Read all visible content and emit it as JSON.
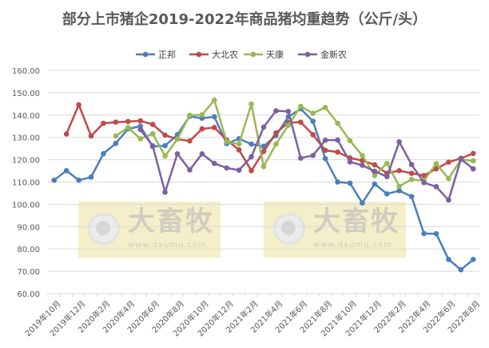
{
  "chart_data": {
    "type": "line",
    "title": "部分上市猪企2019-2022年商品猪均重趋势（公斤/头）",
    "legend_position": "top",
    "grid": true,
    "ylim": [
      60,
      160
    ],
    "yticks": [
      "60.00",
      "70.00",
      "80.00",
      "90.00",
      "100.00",
      "110.00",
      "120.00",
      "130.00",
      "140.00",
      "150.00",
      "160.00"
    ],
    "x": [
      "2019年10月",
      "2019年11月",
      "2019年12月",
      "2020年1月",
      "2020年2月",
      "2020年3月",
      "2020年4月",
      "2020年5月",
      "2020年6月",
      "2020年7月",
      "2020年8月",
      "2020年9月",
      "2020年10月",
      "2020年11月",
      "2020年12月",
      "2021年1月",
      "2021年2月",
      "2021年3月",
      "2021年4月",
      "2021年5月",
      "2021年6月",
      "2021年7月",
      "2021年8月",
      "2021年9月",
      "2021年10月",
      "2021年11月",
      "2021年12月",
      "2022年1月",
      "2022年2月",
      "2022年3月",
      "2022年4月",
      "2022年5月",
      "2022年6月",
      "2022年7月",
      "2022年8月"
    ],
    "xtick_labels": [
      "2019年10月",
      "2019年12月",
      "2020年2月",
      "2020年4月",
      "2020年6月",
      "2020年8月",
      "2020年10月",
      "2020年12月",
      "2021年2月",
      "2021年4月",
      "2021年6月",
      "2021年8月",
      "2021年10月",
      "2021年12月",
      "2022年2月",
      "2022年4月",
      "2022年6月",
      "2022年8月"
    ],
    "series": [
      {
        "name": "正邦",
        "color": "#4a7ebb",
        "values": [
          110.8,
          115.1,
          110.8,
          112.2,
          122.7,
          127.3,
          133.8,
          135.0,
          125.9,
          126.3,
          131.2,
          139.4,
          138.6,
          139.2,
          127.2,
          129.4,
          127.0,
          126.0,
          130.8,
          139.2,
          142.8,
          137.2,
          120.5,
          110.0,
          109.5,
          100.6,
          109.1,
          104.7,
          106.1,
          103.5,
          86.9,
          86.8,
          75.3,
          70.7,
          75.3
        ]
      },
      {
        "name": "大北农",
        "color": "#be4b48",
        "values": [
          null,
          131.5,
          144.6,
          130.6,
          136.3,
          136.8,
          137.1,
          137.4,
          135.8,
          131.0,
          129.2,
          128.4,
          133.8,
          134.4,
          128.8,
          124.4,
          115.1,
          123.7,
          132.0,
          136.6,
          136.8,
          131.2,
          124.2,
          123.4,
          120.8,
          119.6,
          117.7,
          113.9,
          115.1,
          113.9,
          112.9,
          115.9,
          118.9,
          120.6,
          122.8
        ]
      },
      {
        "name": "天康",
        "color": "#98b954",
        "values": [
          null,
          null,
          null,
          null,
          null,
          130.6,
          134.4,
          129.4,
          131.6,
          121.6,
          129.2,
          139.9,
          140.1,
          146.7,
          128.0,
          127.0,
          144.9,
          116.9,
          127.0,
          135.4,
          143.9,
          140.8,
          143.4,
          136.3,
          128.5,
          121.9,
          112.9,
          118.4,
          108.1,
          111.2,
          110.6,
          118.2,
          111.5,
          120.1,
          119.5
        ]
      },
      {
        "name": "金新农",
        "color": "#7d60a0",
        "values": [
          null,
          null,
          null,
          null,
          null,
          null,
          null,
          133.5,
          126.2,
          105.4,
          122.6,
          115.4,
          122.6,
          118.3,
          116.3,
          115.3,
          121.3,
          134.6,
          141.9,
          141.6,
          120.7,
          121.9,
          128.7,
          128.8,
          119.0,
          117.5,
          114.8,
          112.4,
          128.0,
          117.8,
          109.7,
          107.9,
          101.9,
          120.2,
          115.9
        ]
      }
    ]
  },
  "watermark": {
    "brand": "大畜牧",
    "url": "www.dxumu.com"
  }
}
